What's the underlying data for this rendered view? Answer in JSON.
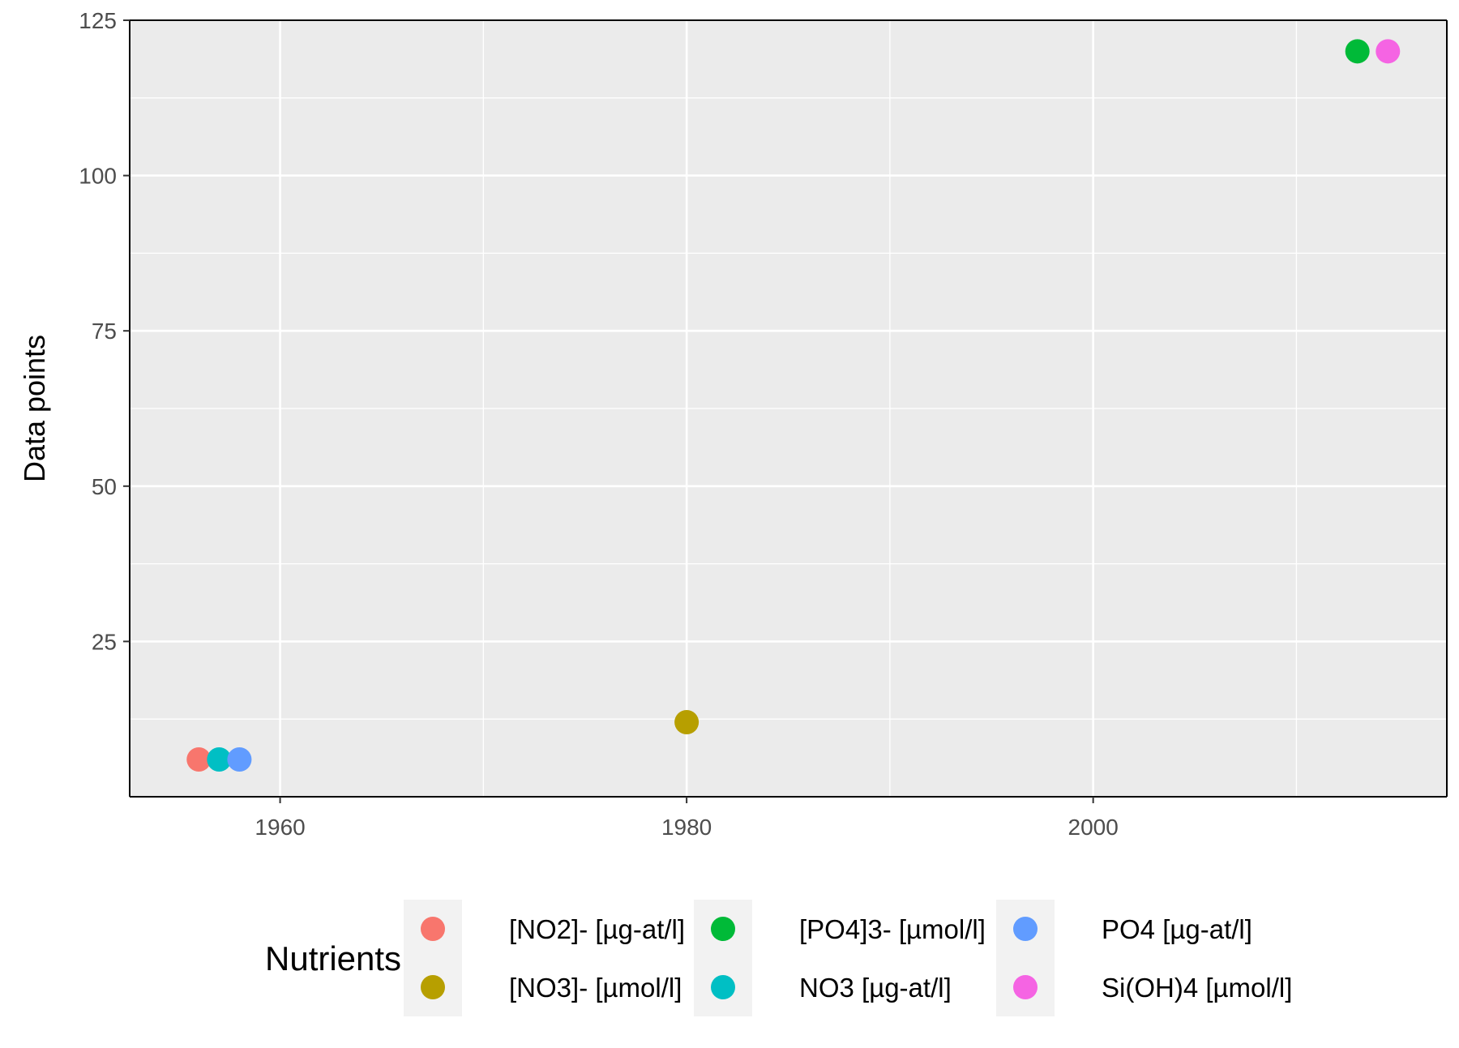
{
  "chart_data": {
    "type": "scatter",
    "title": "",
    "xlabel": "",
    "ylabel": "Data points",
    "xlim": [
      1952.6,
      2017.4
    ],
    "ylim": [
      0,
      125
    ],
    "x_ticks": [
      1960,
      1980,
      2000
    ],
    "x_minor_ticks": [
      1970,
      1990,
      2010
    ],
    "y_ticks": [
      25,
      50,
      75,
      100,
      125
    ],
    "y_minor_ticks": [
      12.5,
      37.5,
      62.5,
      87.5,
      112.5
    ],
    "grid": true,
    "panel_background": "#ebebeb",
    "grid_color": "#ffffff",
    "legend": {
      "title": "Nutrients",
      "position": "bottom",
      "columns": 3
    },
    "series": [
      {
        "name": "[NO2]- [µg-at/l]",
        "color": "#f8766d",
        "points": [
          {
            "x": 1956,
            "y": 6
          }
        ]
      },
      {
        "name": "[NO3]- [µmol/l]",
        "color": "#b79f00",
        "points": [
          {
            "x": 1980,
            "y": 12
          }
        ]
      },
      {
        "name": "[PO4]3- [µmol/l]",
        "color": "#00ba38",
        "points": [
          {
            "x": 2013,
            "y": 120
          }
        ]
      },
      {
        "name": "NO3 [µg-at/l]",
        "color": "#00bfc4",
        "points": [
          {
            "x": 1957,
            "y": 6
          }
        ]
      },
      {
        "name": "PO4 [µg-at/l]",
        "color": "#619cff",
        "points": [
          {
            "x": 1958,
            "y": 6
          }
        ]
      },
      {
        "name": "Si(OH)4 [µmol/l]",
        "color": "#f564e3",
        "points": [
          {
            "x": 2014.5,
            "y": 120
          }
        ]
      }
    ]
  }
}
